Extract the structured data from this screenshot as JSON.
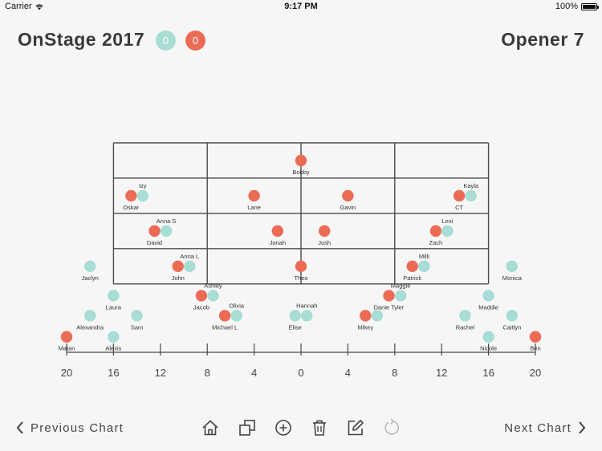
{
  "status": {
    "carrier": "Carrier",
    "time": "9:17 PM",
    "battery": "100%"
  },
  "header": {
    "title": "OnStage 2017",
    "count_green": "0",
    "count_red": "0",
    "chart_name": "Opener 7",
    "color_red": "#ec6b55",
    "color_green": "#a7ddd4"
  },
  "scale": {
    "labels": [
      "20",
      "16",
      "12",
      "8",
      "4",
      "0",
      "4",
      "8",
      "12",
      "16",
      "20"
    ]
  },
  "performers": [
    {
      "name": "Bobby",
      "color": "red",
      "x": 0,
      "y": 1.5
    },
    {
      "name": "Izy",
      "color": "green",
      "x": -13.5,
      "y": 4.5,
      "label": "above"
    },
    {
      "name": "Oskar",
      "color": "red",
      "x": -14.5,
      "y": 4.5
    },
    {
      "name": "Lane",
      "color": "red",
      "x": -4,
      "y": 4.5
    },
    {
      "name": "Gavin",
      "color": "red",
      "x": 4,
      "y": 4.5
    },
    {
      "name": "Kayla",
      "color": "green",
      "x": 14.5,
      "y": 4.5,
      "label": "above"
    },
    {
      "name": "CT",
      "color": "red",
      "x": 13.5,
      "y": 4.5
    },
    {
      "name": "Anna S",
      "color": "green",
      "x": -11.5,
      "y": 7.5,
      "label": "above"
    },
    {
      "name": "David",
      "color": "red",
      "x": -12.5,
      "y": 7.5
    },
    {
      "name": "Jonah",
      "color": "red",
      "x": -2,
      "y": 7.5
    },
    {
      "name": "Josh",
      "color": "red",
      "x": 2,
      "y": 7.5
    },
    {
      "name": "Lexi",
      "color": "green",
      "x": 12.5,
      "y": 7.5,
      "label": "above"
    },
    {
      "name": "Zach",
      "color": "red",
      "x": 11.5,
      "y": 7.5
    },
    {
      "name": "Anna L",
      "color": "green",
      "x": -9.5,
      "y": 10.5,
      "label": "above"
    },
    {
      "name": "John",
      "color": "red",
      "x": -10.5,
      "y": 10.5
    },
    {
      "name": "Theo",
      "color": "red",
      "x": 0,
      "y": 10.5
    },
    {
      "name": "Milli",
      "color": "green",
      "x": 10.5,
      "y": 10.5,
      "label": "above"
    },
    {
      "name": "Patrick",
      "color": "red",
      "x": 9.5,
      "y": 10.5
    },
    {
      "name": "Jaclyn",
      "color": "green",
      "x": -18,
      "y": 10.5
    },
    {
      "name": "Monica",
      "color": "green",
      "x": 18,
      "y": 10.5
    },
    {
      "name": "Ashley",
      "color": "green",
      "x": -7.5,
      "y": 13,
      "label": "above"
    },
    {
      "name": "Jacob",
      "color": "red",
      "x": -8.5,
      "y": 13
    },
    {
      "name": "Maggie",
      "color": "green",
      "x": 8.5,
      "y": 13,
      "label": "above"
    },
    {
      "name": "Danie Tyler",
      "color": "red",
      "x": 7.5,
      "y": 13
    },
    {
      "name": "Laura",
      "color": "green",
      "x": -16,
      "y": 13
    },
    {
      "name": "Maddie",
      "color": "green",
      "x": 16,
      "y": 13
    },
    {
      "name": "Olivia",
      "color": "green",
      "x": -5.5,
      "y": 14.7,
      "label": "above"
    },
    {
      "name": "Michael L",
      "color": "red",
      "x": -6.5,
      "y": 14.7
    },
    {
      "name": "Hannah",
      "color": "green",
      "x": 0.5,
      "y": 14.7,
      "label": "above"
    },
    {
      "name": "Elise",
      "color": "green",
      "x": -0.5,
      "y": 14.7
    },
    {
      "name": "Mikey",
      "color": "red",
      "x": 5.5,
      "y": 14.7
    },
    {
      "name": "Alexandra",
      "color": "green",
      "x": -18,
      "y": 14.7
    },
    {
      "name": "Sam",
      "color": "green",
      "x": -14,
      "y": 14.7
    },
    {
      "name": "Rachel",
      "color": "green",
      "x": 14,
      "y": 14.7
    },
    {
      "name": "Caitlyn",
      "color": "green",
      "x": 18,
      "y": 14.7
    },
    {
      "name": "Matan",
      "color": "red",
      "x": -20,
      "y": 16.5
    },
    {
      "name": "Alexis",
      "color": "green",
      "x": -16,
      "y": 16.5
    },
    {
      "name": "Nicole",
      "color": "green",
      "x": 16,
      "y": 16.5
    },
    {
      "name": "Ben",
      "color": "red",
      "x": 20,
      "y": 16.5
    }
  ],
  "unlabeled_markers": [
    {
      "color": "green",
      "x": 6.5,
      "y": 14.7
    }
  ],
  "footer": {
    "prev_label": "Previous Chart",
    "next_label": "Next Chart",
    "tools": [
      "home-icon",
      "duplicate-icon",
      "add-icon",
      "trash-icon",
      "edit-icon",
      "undo-icon"
    ]
  }
}
